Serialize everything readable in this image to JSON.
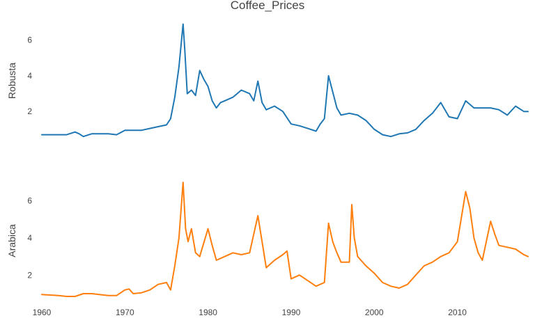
{
  "chart_data": {
    "type": "line",
    "title": "Coffee_Prices",
    "grid": false,
    "legend": "none",
    "xaxis": {
      "ticks": [
        1960,
        1970,
        1980,
        1990,
        2000,
        2010
      ],
      "tick_labels": [
        "1960",
        "1970",
        "1980",
        "1990",
        "2000",
        "2010"
      ],
      "range": [
        1960,
        2018.5
      ]
    },
    "subplots": [
      {
        "ylabel": "Robusta",
        "color": "#1f77b4",
        "y_ticks": [
          2,
          4,
          6
        ],
        "y_tick_labels": [
          "2",
          "4",
          "6"
        ],
        "ylim": [
          0.45,
          7.0
        ],
        "x": [
          1960,
          1962,
          1963,
          1964,
          1964.5,
          1965,
          1966,
          1968,
          1969,
          1970,
          1972,
          1973,
          1974,
          1975,
          1975.5,
          1976,
          1976.5,
          1977,
          1977.2,
          1977.5,
          1978,
          1978.5,
          1979,
          1979.5,
          1980,
          1980.5,
          1981,
          1981.5,
          1982,
          1983,
          1984,
          1985,
          1985.5,
          1986,
          1986.5,
          1987,
          1988,
          1989,
          1990,
          1991,
          1992,
          1993,
          1993.5,
          1994,
          1994.5,
          1995,
          1995.5,
          1996,
          1997,
          1998,
          1999,
          2000,
          2001,
          2002,
          2003,
          2004,
          2005,
          2006,
          2007,
          2008,
          2008.5,
          2009,
          2010,
          2011,
          2012,
          2013,
          2014,
          2015,
          2016,
          2017,
          2018,
          2018.5
        ],
        "y": [
          0.7,
          0.7,
          0.7,
          0.85,
          0.75,
          0.6,
          0.75,
          0.75,
          0.7,
          0.95,
          0.95,
          1.05,
          1.15,
          1.25,
          1.6,
          2.8,
          4.5,
          6.9,
          5.5,
          3.0,
          3.2,
          2.9,
          4.3,
          3.8,
          3.4,
          2.6,
          2.2,
          2.5,
          2.6,
          2.8,
          3.2,
          3.0,
          2.6,
          3.7,
          2.5,
          2.1,
          2.3,
          2.0,
          1.3,
          1.2,
          1.05,
          0.9,
          1.3,
          1.6,
          4.0,
          3.1,
          2.2,
          1.8,
          1.9,
          1.8,
          1.5,
          1.0,
          0.7,
          0.6,
          0.75,
          0.8,
          1.0,
          1.5,
          1.9,
          2.5,
          2.1,
          1.7,
          1.6,
          2.6,
          2.2,
          2.2,
          2.2,
          2.1,
          1.8,
          2.3,
          2.0,
          2.0
        ]
      },
      {
        "ylabel": "Arabica",
        "color": "#ff7f0e",
        "y_ticks": [
          2,
          4,
          6
        ],
        "y_tick_labels": [
          "2",
          "4",
          "6"
        ],
        "ylim": [
          0.7,
          7.0
        ],
        "x": [
          1960,
          1962,
          1963,
          1964,
          1965,
          1966,
          1968,
          1969,
          1970,
          1970.5,
          1971,
          1972,
          1973,
          1974,
          1975,
          1975.5,
          1976,
          1976.5,
          1977,
          1977.3,
          1977.6,
          1978,
          1978.5,
          1979,
          1980,
          1980.5,
          1981,
          1982,
          1983,
          1984,
          1985,
          1986,
          1986.5,
          1987,
          1988,
          1989,
          1989.5,
          1990,
          1991,
          1992,
          1993,
          1994,
          1994.5,
          1995,
          1995.5,
          1996,
          1997,
          1997.3,
          1997.6,
          1998,
          1999,
          2000,
          2001,
          2002,
          2003,
          2004,
          2005,
          2006,
          2007,
          2008,
          2009,
          2010,
          2011,
          2011.5,
          2012,
          2012.5,
          2013,
          2014,
          2014.5,
          2015,
          2016,
          2017,
          2018,
          2018.5
        ],
        "y": [
          0.95,
          0.9,
          0.85,
          0.85,
          1.0,
          1.0,
          0.9,
          0.9,
          1.2,
          1.25,
          1.0,
          1.05,
          1.2,
          1.5,
          1.6,
          1.2,
          2.5,
          4.0,
          7.0,
          4.5,
          3.8,
          4.5,
          3.2,
          3.0,
          4.5,
          3.6,
          2.8,
          3.0,
          3.2,
          3.1,
          3.2,
          5.2,
          3.8,
          2.4,
          2.8,
          3.1,
          3.3,
          1.8,
          2.0,
          1.7,
          1.4,
          1.6,
          4.8,
          3.8,
          3.2,
          2.7,
          2.7,
          5.8,
          4.0,
          3.0,
          2.5,
          2.1,
          1.6,
          1.4,
          1.3,
          1.5,
          2.0,
          2.5,
          2.7,
          3.0,
          3.2,
          3.8,
          6.5,
          5.6,
          4.0,
          3.2,
          2.8,
          4.9,
          4.2,
          3.6,
          3.5,
          3.4,
          3.1,
          3.0
        ]
      }
    ]
  }
}
